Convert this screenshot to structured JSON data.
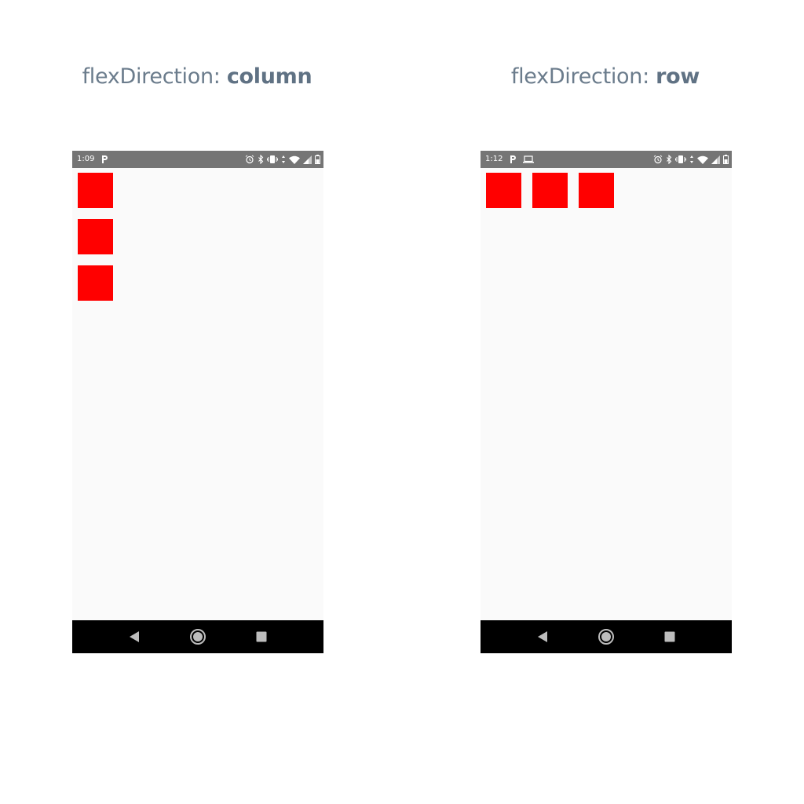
{
  "captions": {
    "left": {
      "prefix": "flexDirection: ",
      "value": "column"
    },
    "right": {
      "prefix": "flexDirection: ",
      "value": "row"
    }
  },
  "phones": {
    "left": {
      "status_time": "1:09",
      "left_icons": [
        "parking-icon"
      ],
      "right_icons": [
        "alarm-icon",
        "bluetooth-icon",
        "vibrate-icon",
        "data-arrows-icon",
        "wifi-icon",
        "signal-icon",
        "battery-icon"
      ],
      "flex_direction": "column",
      "box_count": 3,
      "box_color": "#ff0000"
    },
    "right": {
      "status_time": "1:12",
      "left_icons": [
        "parking-icon",
        "laptop-icon"
      ],
      "right_icons": [
        "alarm-icon",
        "bluetooth-icon",
        "vibrate-icon",
        "data-arrows-icon",
        "wifi-icon",
        "signal-icon",
        "battery-icon"
      ],
      "flex_direction": "row",
      "box_count": 3,
      "box_color": "#ff0000"
    }
  },
  "colors": {
    "caption_text": "#6b7c8c",
    "status_bar": "#757575",
    "screen_background": "#fafafa",
    "nav_bar": "#000000"
  }
}
